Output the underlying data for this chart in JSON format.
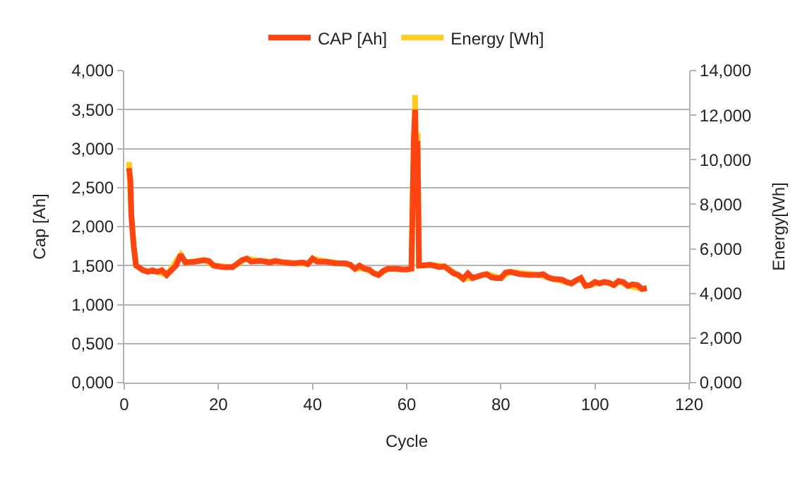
{
  "chart_data": {
    "type": "line",
    "xlabel": "Cycle",
    "ylabel": "Cap [Ah]",
    "y2label": "Energy[Wh]",
    "legend": "top",
    "grid": "y",
    "marker": "none",
    "line_style": "solid",
    "xlim": [
      0,
      120
    ],
    "xticks": [
      0,
      20,
      40,
      60,
      80,
      100,
      120
    ],
    "ylim": [
      0,
      4
    ],
    "yticks": [
      {
        "value": 0,
        "label": "0,000"
      },
      {
        "value": 0.5,
        "label": "0,500"
      },
      {
        "value": 1,
        "label": "1,000"
      },
      {
        "value": 1.5,
        "label": "1,500"
      },
      {
        "value": 2,
        "label": "2,000"
      },
      {
        "value": 2.5,
        "label": "2,500"
      },
      {
        "value": 3,
        "label": "3,000"
      },
      {
        "value": 3.5,
        "label": "3,500"
      },
      {
        "value": 4,
        "label": "4,000"
      }
    ],
    "y2lim": [
      0,
      14
    ],
    "y2ticks": [
      {
        "value": 0,
        "label": "0,000"
      },
      {
        "value": 2,
        "label": "2,000"
      },
      {
        "value": 4,
        "label": "4,000"
      },
      {
        "value": 6,
        "label": "6,000"
      },
      {
        "value": 8,
        "label": "8,000"
      },
      {
        "value": 10,
        "label": "10,000"
      },
      {
        "value": 12,
        "label": "12,000"
      },
      {
        "value": 14,
        "label": "14,000"
      }
    ],
    "series": [
      {
        "name": "CAP [Ah]",
        "color": "#ff4411",
        "x": [
          1,
          1.3,
          1.5,
          2,
          2.5,
          3,
          4,
          5,
          6,
          7,
          8,
          9,
          10,
          11,
          12,
          13,
          15,
          17,
          18,
          19,
          21,
          23,
          25,
          26,
          27,
          29,
          31,
          32,
          34,
          36,
          38,
          39,
          40,
          41,
          43,
          45,
          47,
          48,
          49,
          50,
          51,
          52,
          53,
          54,
          55,
          56,
          58,
          59,
          60,
          61,
          61.3,
          61.5,
          61.8,
          62,
          62.3,
          62.6,
          63,
          65,
          67,
          68,
          70,
          71,
          72,
          73,
          74,
          75,
          76,
          77,
          78,
          79,
          80,
          81,
          82,
          84,
          86,
          88,
          89,
          90,
          91,
          93,
          94,
          95,
          96,
          97,
          98,
          99,
          100,
          101,
          102,
          103,
          104,
          105,
          106,
          107,
          108,
          109,
          110,
          111
        ],
        "values": [
          2.75,
          2.6,
          2.15,
          1.75,
          1.5,
          1.48,
          1.44,
          1.42,
          1.44,
          1.42,
          1.44,
          1.38,
          1.44,
          1.5,
          1.64,
          1.54,
          1.55,
          1.57,
          1.56,
          1.5,
          1.48,
          1.48,
          1.57,
          1.59,
          1.55,
          1.56,
          1.54,
          1.56,
          1.54,
          1.53,
          1.54,
          1.52,
          1.59,
          1.55,
          1.55,
          1.53,
          1.53,
          1.51,
          1.46,
          1.5,
          1.46,
          1.45,
          1.4,
          1.38,
          1.43,
          1.46,
          1.46,
          1.45,
          1.45,
          1.46,
          2.4,
          3.1,
          3.5,
          2.6,
          3.1,
          1.5,
          1.5,
          1.51,
          1.48,
          1.49,
          1.4,
          1.38,
          1.33,
          1.4,
          1.34,
          1.36,
          1.38,
          1.39,
          1.35,
          1.34,
          1.34,
          1.41,
          1.42,
          1.39,
          1.38,
          1.38,
          1.39,
          1.35,
          1.33,
          1.32,
          1.29,
          1.27,
          1.31,
          1.34,
          1.24,
          1.25,
          1.29,
          1.27,
          1.29,
          1.28,
          1.25,
          1.3,
          1.29,
          1.24,
          1.26,
          1.25,
          1.2,
          1.21
        ]
      },
      {
        "name": "Energy [Wh]",
        "color": "#ffcc22",
        "axis": "y2",
        "x": [
          1,
          1.5,
          2,
          2.5,
          4,
          7,
          9,
          12,
          13,
          17,
          19,
          23,
          26,
          29,
          34,
          39,
          40,
          43,
          48,
          49,
          51,
          54,
          56,
          60,
          61,
          61.3,
          61.8,
          62,
          62.3,
          62.6,
          65,
          68,
          72,
          74,
          77,
          80,
          82,
          88,
          91,
          95,
          97,
          98,
          102,
          104,
          105,
          107,
          110,
          111
        ],
        "values": [
          9.9,
          7.5,
          6.1,
          5.25,
          5.04,
          4.97,
          4.83,
          5.74,
          5.39,
          5.5,
          5.25,
          5.18,
          5.57,
          5.46,
          5.39,
          5.32,
          5.57,
          5.43,
          5.29,
          5.11,
          5.11,
          4.83,
          5.11,
          5.08,
          5.11,
          8.8,
          12.9,
          9.1,
          11.2,
          5.25,
          5.29,
          5.22,
          4.66,
          4.69,
          4.87,
          4.69,
          4.97,
          4.83,
          4.66,
          4.45,
          4.69,
          4.34,
          4.52,
          4.38,
          4.55,
          4.34,
          4.2,
          4.24
        ]
      }
    ]
  }
}
